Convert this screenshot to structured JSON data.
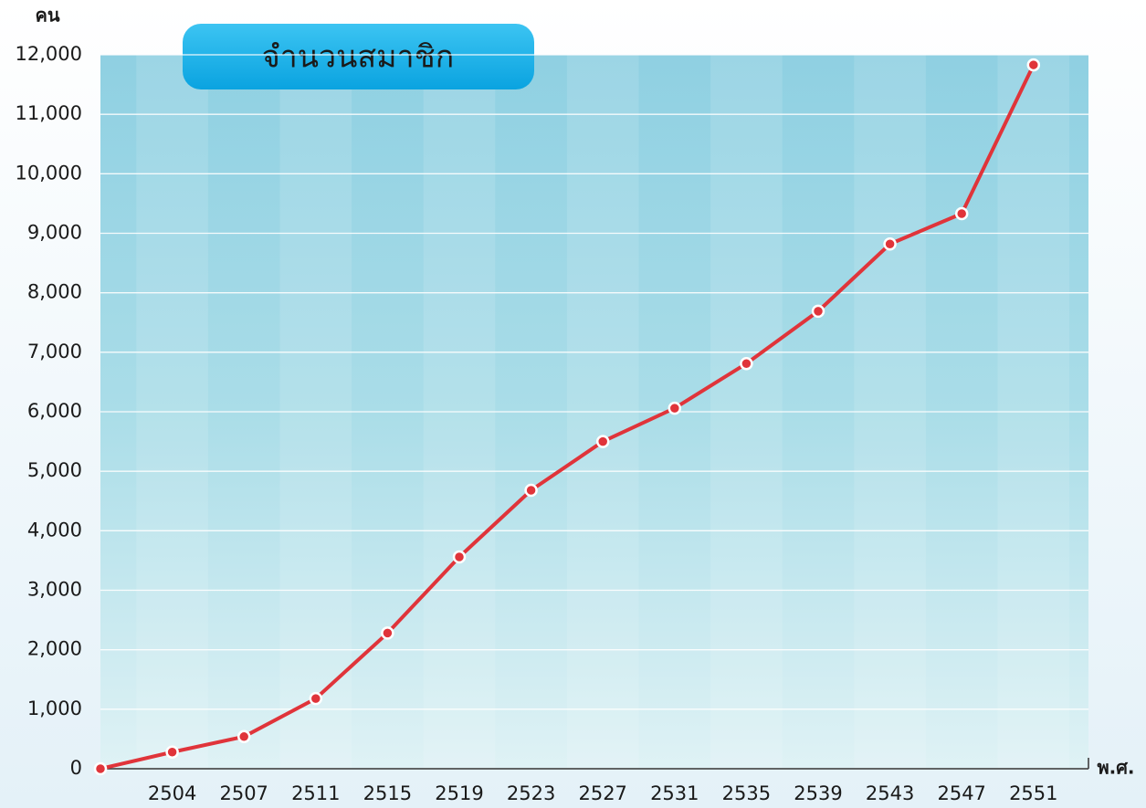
{
  "chart_data": {
    "type": "line",
    "title": "จำนวนสมาชิก",
    "ylabel": "คน",
    "xlabel": "พ.ศ.",
    "categories": [
      null,
      "2504",
      "2507",
      "2511",
      "2515",
      "2519",
      "2523",
      "2527",
      "2531",
      "2535",
      "2539",
      "2543",
      "2547",
      "2551"
    ],
    "series": [
      {
        "color": "#e0343a",
        "values": [
          0,
          280,
          540,
          1180,
          2280,
          3560,
          4680,
          5500,
          6060,
          6810,
          7690,
          8820,
          9330,
          11830
        ]
      }
    ],
    "ylim": [
      0,
      12000
    ],
    "yticks": [
      0,
      {
        "value": 1000,
        "label": "1,000"
      },
      {
        "value": 2000,
        "label": "2,000"
      },
      {
        "value": 3000,
        "label": "3,000"
      },
      {
        "value": 4000,
        "label": "4,000"
      },
      {
        "value": 5000,
        "label": "5,000"
      },
      {
        "value": 6000,
        "label": "6,000"
      },
      {
        "value": 7000,
        "label": "7,000"
      },
      {
        "value": 8000,
        "label": "8,000"
      },
      {
        "value": 9000,
        "label": "9,000"
      },
      {
        "value": 10000,
        "label": "10,000"
      },
      {
        "value": 11000,
        "label": "11,000"
      },
      {
        "value": 12000,
        "label": "12,000"
      }
    ],
    "grid": true
  }
}
